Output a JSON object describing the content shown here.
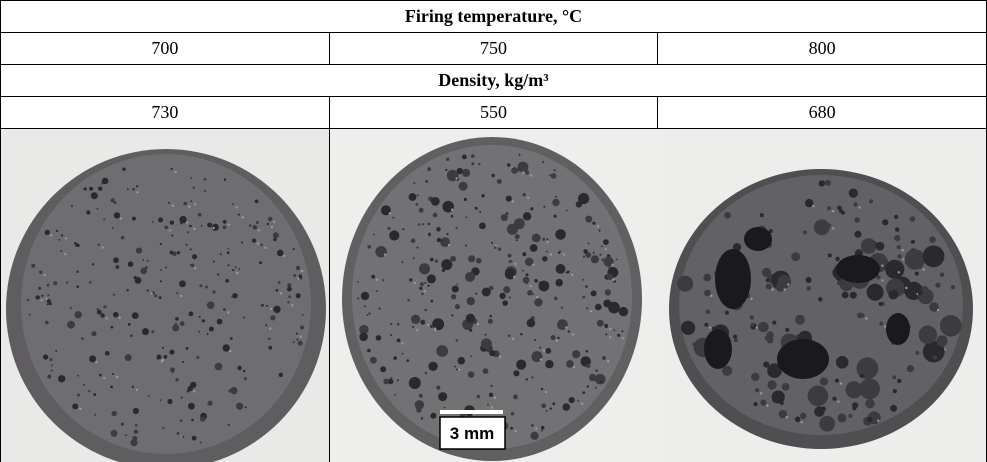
{
  "table": {
    "title": "Firing temperature, °C",
    "temperatures": [
      700,
      750,
      800
    ],
    "density_title": "Density, kg/m³",
    "densities": [
      730,
      550,
      680
    ],
    "scale_bar": "3 mm"
  }
}
